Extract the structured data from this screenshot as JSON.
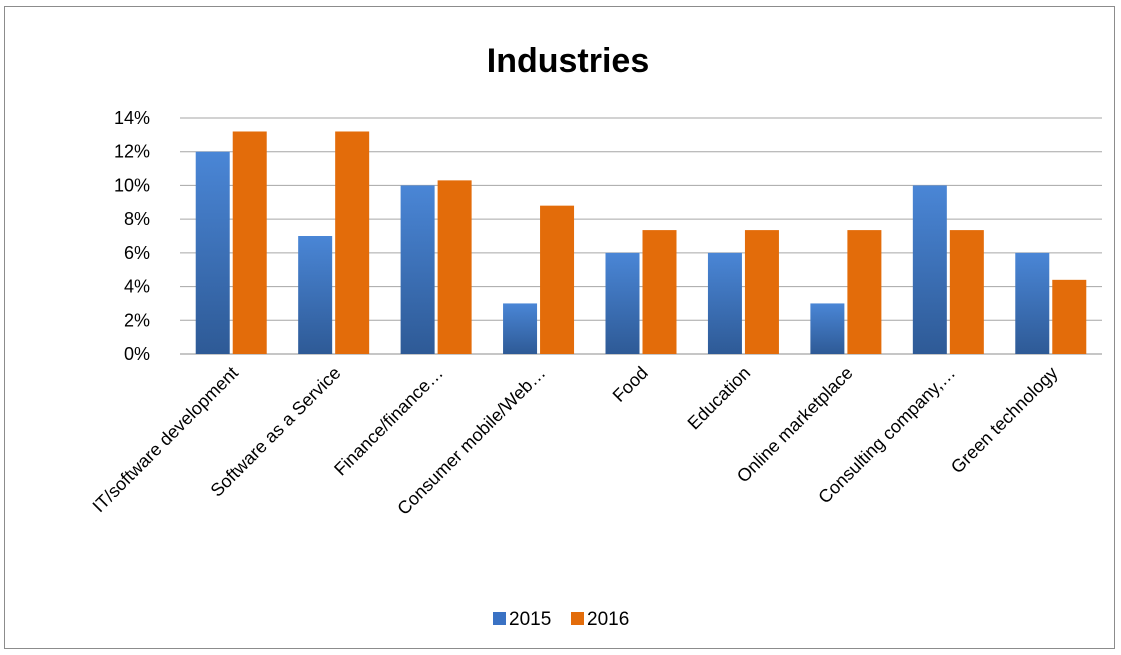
{
  "chart_data": {
    "type": "bar",
    "title": "Industries",
    "categories": [
      "IT/software development",
      "Software as a Service",
      "Finance/finance…",
      "Consumer mobile/Web…",
      "Food",
      "Education",
      "Online marketplace",
      "Consulting company,…",
      "Green technology"
    ],
    "series": [
      {
        "name": "2015",
        "color": "#3a72c4",
        "values": [
          12,
          7,
          10,
          3,
          6,
          6,
          3,
          10,
          6
        ]
      },
      {
        "name": "2016",
        "color": "#e36c0a",
        "values": [
          13.2,
          13.2,
          10.3,
          8.8,
          7.35,
          7.35,
          7.35,
          7.35,
          4.4
        ]
      }
    ],
    "ylim": [
      0,
      14
    ],
    "yticks": [
      "0%",
      "2%",
      "4%",
      "6%",
      "8%",
      "10%",
      "12%",
      "14%"
    ],
    "grid": true,
    "legend": "bottom"
  }
}
